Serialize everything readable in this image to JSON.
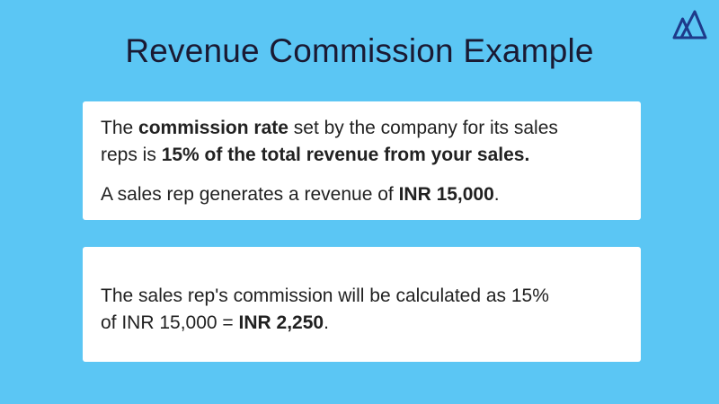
{
  "slide": {
    "title": "Revenue Commission Example",
    "logo_icon": "twin-peaks-logo",
    "colors": {
      "background": "#5BC6F4",
      "card_background": "#FFFFFF",
      "title_text": "#1A1A33",
      "body_text": "#212121",
      "logo": "#1E3A8A"
    },
    "cards": [
      {
        "paragraphs": [
          {
            "lines": [
              [
                {
                  "t": "The "
                },
                {
                  "t": "commission rate",
                  "b": true
                },
                {
                  "t": " set by the company for its sales"
                }
              ],
              [
                {
                  "t": "reps is "
                },
                {
                  "t": "15% of the total revenue from your sales.",
                  "b": true
                }
              ]
            ]
          },
          {
            "lines": [
              [
                {
                  "t": "A sales rep generates a revenue of "
                },
                {
                  "t": "INR 15,000",
                  "b": true
                },
                {
                  "t": "."
                }
              ]
            ]
          }
        ]
      },
      {
        "paragraphs": [
          {
            "lines": [
              [
                {
                  "t": "The sales rep's commission will be calculated as 15%"
                }
              ],
              [
                {
                  "t": "of INR 15,000 = "
                },
                {
                  "t": "INR 2,250",
                  "b": true
                },
                {
                  "t": "."
                }
              ]
            ]
          }
        ]
      }
    ]
  }
}
